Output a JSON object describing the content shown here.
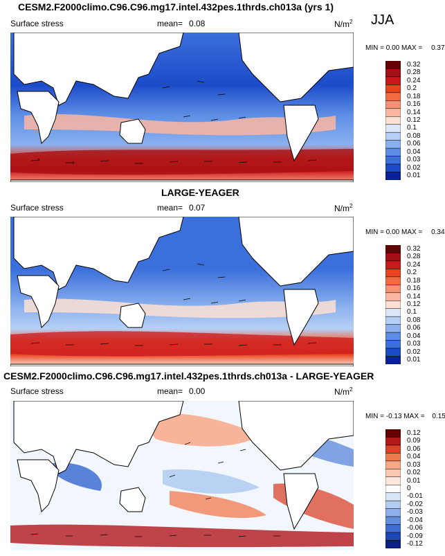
{
  "season": "JJA",
  "panels": [
    {
      "title": "CESM2.F2000climo.C96.C96.mg17.intel.432pes.1thrds.ch013a (yrs 1)",
      "variable": "Surface stress",
      "mean_label": "mean=",
      "mean": "0.08",
      "units": "N/m",
      "units_exp": "2",
      "min_label": "MIN =",
      "min": "0.00",
      "max_label": "MAX =",
      "max": "0.37",
      "colorbar_levels": [
        "0.32",
        "0.28",
        "0.24",
        "0.2",
        "0.18",
        "0.16",
        "0.14",
        "0.12",
        "0.1",
        "0.08",
        "0.06",
        "0.04",
        "0.03",
        "0.02",
        "0.01"
      ]
    },
    {
      "title": "LARGE-YEAGER",
      "variable": "Surface stress",
      "mean_label": "mean=",
      "mean": "0.07",
      "units": "N/m",
      "units_exp": "2",
      "min_label": "MIN =",
      "min": "0.00",
      "max_label": "MAX =",
      "max": "0.34",
      "colorbar_levels": [
        "0.32",
        "0.28",
        "0.24",
        "0.2",
        "0.18",
        "0.16",
        "0.14",
        "0.12",
        "0.1",
        "0.08",
        "0.06",
        "0.04",
        "0.03",
        "0.02",
        "0.01"
      ]
    },
    {
      "title": "CESM2.F2000climo.C96.C96.mg17.intel.432pes.1thrds.ch013a - LARGE-YEAGER",
      "variable": "Surface stress",
      "mean_label": "mean=",
      "mean": "0.00",
      "units": "N/m",
      "units_exp": "2",
      "min_label": "MIN =",
      "min": "-0.13",
      "max_label": "MAX =",
      "max": "0.15",
      "colorbar_levels": [
        "0.12",
        "0.09",
        "0.06",
        "0.04",
        "0.03",
        "0.02",
        "0.01",
        "0",
        "-0.01",
        "-0.02",
        "-0.03",
        "-0.04",
        "-0.06",
        "-0.09",
        "-0.12"
      ]
    }
  ],
  "chart_data": [
    {
      "type": "heatmap",
      "title": "CESM2.F2000climo.C96.C96.mg17.intel.432pes.1thrds.ch013a (yrs 1)",
      "variable": "Surface stress",
      "units": "N/m2",
      "mean": 0.08,
      "min": 0.0,
      "max": 0.37,
      "levels": [
        0.01,
        0.02,
        0.03,
        0.04,
        0.06,
        0.08,
        0.1,
        0.12,
        0.14,
        0.16,
        0.18,
        0.2,
        0.24,
        0.28,
        0.32
      ]
    },
    {
      "type": "heatmap",
      "title": "LARGE-YEAGER",
      "variable": "Surface stress",
      "units": "N/m2",
      "mean": 0.07,
      "min": 0.0,
      "max": 0.34,
      "levels": [
        0.01,
        0.02,
        0.03,
        0.04,
        0.06,
        0.08,
        0.1,
        0.12,
        0.14,
        0.16,
        0.18,
        0.2,
        0.24,
        0.28,
        0.32
      ]
    },
    {
      "type": "heatmap",
      "title": "CESM2.F2000climo.C96.C96.mg17.intel.432pes.1thrds.ch013a - LARGE-YEAGER",
      "variable": "Surface stress",
      "units": "N/m2",
      "mean": 0.0,
      "min": -0.13,
      "max": 0.15,
      "levels": [
        -0.12,
        -0.09,
        -0.06,
        -0.04,
        -0.03,
        -0.02,
        -0.01,
        0,
        0.01,
        0.02,
        0.03,
        0.04,
        0.06,
        0.09,
        0.12
      ]
    }
  ],
  "colors": {
    "seq": [
      "#650000",
      "#a50f15",
      "#cb181d",
      "#e7431f",
      "#f26a3f",
      "#f69175",
      "#fbb6a0",
      "#fde0d2",
      "#dbe7f8",
      "#b6cff5",
      "#8ab0ee",
      "#5d8ee5",
      "#3b6fdb",
      "#1c4bc9",
      "#08229c"
    ],
    "diff": [
      "#650000",
      "#b2181b",
      "#d9432a",
      "#f07a4c",
      "#f9a888",
      "#fcc7b1",
      "#fde6dc",
      "#ffffff",
      "#d8e6f7",
      "#b3cdf1",
      "#8cb1ea",
      "#628fdf",
      "#3e6dd2",
      "#1e45b8",
      "#0a1f8a"
    ]
  }
}
